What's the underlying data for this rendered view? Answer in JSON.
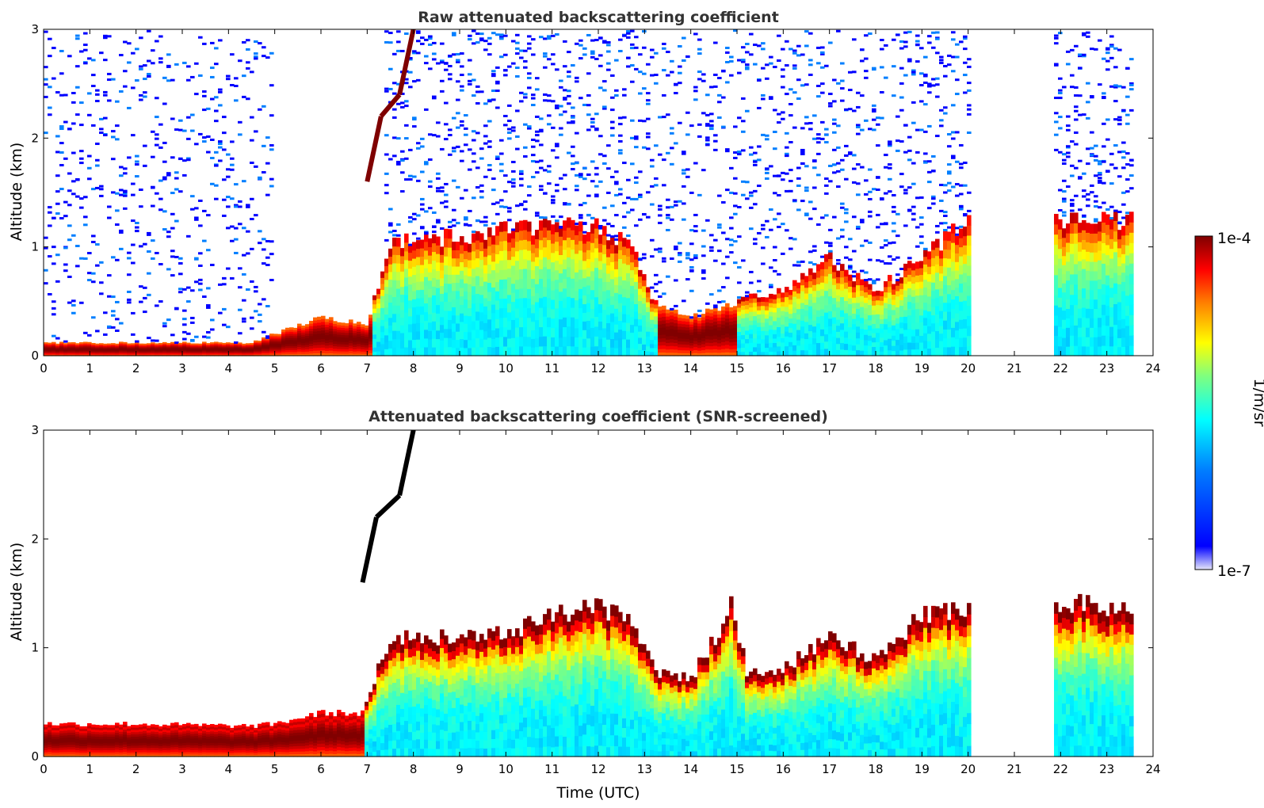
{
  "colorbar": {
    "label": "1/m/sr",
    "max_label": "1e-4",
    "min_label": "1e-7",
    "colormap": [
      "#00007f",
      "#0000ff",
      "#007fff",
      "#00ffff",
      "#7fff7f",
      "#ffff00",
      "#ff7f00",
      "#ff0000",
      "#7f0000"
    ],
    "colormap_low": "#e6e6fa"
  },
  "chart_data": [
    {
      "type": "heatmap",
      "title": "Raw attenuated backscattering coefficient",
      "xlabel": "",
      "ylabel": "Altitude (km)",
      "xlim": [
        0,
        24
      ],
      "ylim": [
        0,
        3
      ],
      "x_ticks": [
        "0",
        "1",
        "2",
        "3",
        "4",
        "5",
        "6",
        "7",
        "8",
        "9",
        "10",
        "11",
        "12",
        "13",
        "14",
        "15",
        "16",
        "17",
        "18",
        "19",
        "20",
        "21",
        "22",
        "23",
        "24"
      ],
      "y_ticks": [
        "0",
        "1",
        "2",
        "3"
      ],
      "color_scale": "log",
      "color_range": [
        1e-07,
        0.0001
      ],
      "data_gaps_hours": [
        [
          20.05,
          21.85
        ],
        [
          23.6,
          24
        ]
      ],
      "aerosol_layer_top_km": [
        [
          0,
          0.12
        ],
        [
          2,
          0.12
        ],
        [
          4.5,
          0.12
        ],
        [
          5,
          0.2
        ],
        [
          6,
          0.35
        ],
        [
          7,
          0.3
        ],
        [
          7.5,
          1.05
        ],
        [
          9,
          1.1
        ],
        [
          11,
          1.2
        ],
        [
          12,
          1.2
        ],
        [
          12.7,
          1.0
        ],
        [
          13.2,
          0.5
        ],
        [
          14,
          0.35
        ],
        [
          15,
          0.5
        ],
        [
          16,
          0.6
        ],
        [
          17,
          0.9
        ],
        [
          18,
          0.6
        ],
        [
          19,
          0.9
        ],
        [
          20,
          1.25
        ],
        [
          21.85,
          1.25
        ],
        [
          23.6,
          1.25
        ]
      ],
      "residual_layer_elevated_km": [
        [
          7.0,
          1.6
        ],
        [
          7.3,
          2.2
        ],
        [
          7.7,
          2.4
        ],
        [
          8.0,
          3.0
        ]
      ]
    },
    {
      "type": "heatmap",
      "title": "Attenuated backscattering coefficient (SNR-screened)",
      "xlabel": "Time (UTC)",
      "ylabel": "Altitude (km)",
      "xlim": [
        0,
        24
      ],
      "ylim": [
        0,
        3
      ],
      "x_ticks": [
        "0",
        "1",
        "2",
        "3",
        "4",
        "5",
        "6",
        "7",
        "8",
        "9",
        "10",
        "11",
        "12",
        "13",
        "14",
        "15",
        "16",
        "17",
        "18",
        "19",
        "20",
        "21",
        "22",
        "23",
        "24"
      ],
      "y_ticks": [
        "0",
        "1",
        "2",
        "3"
      ],
      "color_scale": "log",
      "color_range": [
        1e-07,
        0.0001
      ],
      "data_gaps_hours": [
        [
          20.05,
          21.85
        ],
        [
          23.6,
          24
        ]
      ],
      "aerosol_layer_top_km": [
        [
          0,
          0.3
        ],
        [
          2,
          0.3
        ],
        [
          4.5,
          0.28
        ],
        [
          5,
          0.3
        ],
        [
          6,
          0.4
        ],
        [
          6.9,
          0.4
        ],
        [
          7.5,
          1.1
        ],
        [
          9,
          1.1
        ],
        [
          10,
          1.15
        ],
        [
          11,
          1.3
        ],
        [
          12,
          1.4
        ],
        [
          12.7,
          1.2
        ],
        [
          13.2,
          0.8
        ],
        [
          14,
          0.7
        ],
        [
          14.9,
          1.4
        ],
        [
          15.2,
          0.8
        ],
        [
          16,
          0.8
        ],
        [
          17,
          1.1
        ],
        [
          18,
          0.9
        ],
        [
          19,
          1.3
        ],
        [
          20,
          1.4
        ],
        [
          21.85,
          1.4
        ],
        [
          23.6,
          1.4
        ]
      ],
      "residual_layer_elevated_km": [
        [
          6.9,
          1.6
        ],
        [
          7.2,
          2.2
        ],
        [
          7.7,
          2.4
        ],
        [
          8.0,
          3.0
        ]
      ]
    }
  ]
}
